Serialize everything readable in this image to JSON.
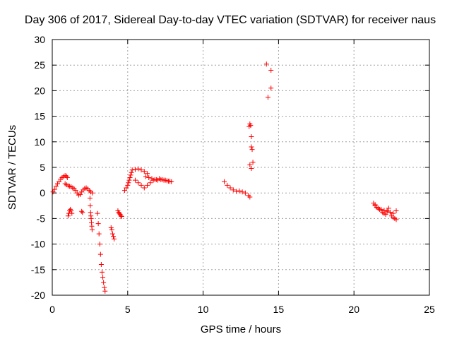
{
  "chart_data": {
    "type": "scatter",
    "title": "Day 306 of 2017, Sidereal Day-to-day VTEC variation (SDTVAR) for receiver naus",
    "xlabel": "GPS time / hours",
    "ylabel": "SDTVAR / TECUs",
    "xlim": [
      0,
      25
    ],
    "ylim": [
      -20,
      30
    ],
    "x_ticks": [
      0,
      5,
      10,
      15,
      20,
      25
    ],
    "y_ticks": [
      -20,
      -15,
      -10,
      -5,
      0,
      5,
      10,
      15,
      20,
      25,
      30
    ],
    "grid": true,
    "marker": "+",
    "color": "#ff0000",
    "series": [
      {
        "name": "SDTVAR",
        "x": [
          0.05,
          0.15,
          0.25,
          0.35,
          0.45,
          0.55,
          0.65,
          0.75,
          0.85,
          0.95,
          1.0,
          1.05,
          1.1,
          1.15,
          1.2,
          1.25,
          1.3,
          0.85,
          0.95,
          1.05,
          1.15,
          1.25,
          1.35,
          1.45,
          1.55,
          1.65,
          1.75,
          1.85,
          1.95,
          2.05,
          2.15,
          2.25,
          2.35,
          2.45,
          2.55,
          2.65,
          1.95,
          2.0,
          2.5,
          2.52,
          2.54,
          2.56,
          2.58,
          2.6,
          2.62,
          2.64,
          3.0,
          3.05,
          3.1,
          3.15,
          3.2,
          3.25,
          3.3,
          3.35,
          3.4,
          3.45,
          3.5,
          3.9,
          3.95,
          4.0,
          4.05,
          4.1,
          4.35,
          4.4,
          4.45,
          4.5,
          4.55,
          4.6,
          4.8,
          4.9,
          5.0,
          5.05,
          5.1,
          5.15,
          5.2,
          5.25,
          5.3,
          5.5,
          5.7,
          5.9,
          6.1,
          6.3,
          5.5,
          5.7,
          5.9,
          6.1,
          6.3,
          6.5,
          6.7,
          6.9,
          7.1,
          7.3,
          7.5,
          7.7,
          7.9,
          6.2,
          6.4,
          6.6,
          6.8,
          7.0,
          7.2,
          7.4,
          7.6,
          7.8,
          11.4,
          11.6,
          11.8,
          12.0,
          12.2,
          12.4,
          12.6,
          12.8,
          13.0,
          13.1,
          13.05,
          13.1,
          13.15,
          13.2,
          13.25,
          13.3,
          13.1,
          13.2,
          13.2,
          14.2,
          14.3,
          14.5,
          14.5,
          21.3,
          21.4,
          21.5,
          21.6,
          21.7,
          21.8,
          21.9,
          22.0,
          22.1,
          22.2,
          22.3,
          22.4,
          22.5,
          22.6,
          22.7,
          22.8,
          21.4,
          21.6,
          21.8,
          22.0,
          22.2,
          22.4,
          22.6,
          22.8
        ],
        "y": [
          0.2,
          0.7,
          1.3,
          1.8,
          2.2,
          2.7,
          3.0,
          3.2,
          3.4,
          3.3,
          3.0,
          -4.5,
          -4.0,
          -3.5,
          -3.2,
          -3.5,
          -4.0,
          1.8,
          1.6,
          1.4,
          1.3,
          1.2,
          1.0,
          0.8,
          0.5,
          0.0,
          -0.4,
          -0.3,
          0.2,
          0.6,
          0.9,
          1.0,
          0.8,
          0.5,
          0.2,
          0.0,
          -3.6,
          -3.8,
          -1.0,
          -2.5,
          -3.8,
          -4.5,
          -5.0,
          -5.8,
          -6.5,
          -7.2,
          -4.0,
          -6.0,
          -8.0,
          -10.0,
          -12.0,
          -14.0,
          -15.5,
          -16.5,
          -17.5,
          -18.5,
          -19.2,
          -6.8,
          -7.2,
          -8.0,
          -8.5,
          -9.0,
          -3.5,
          -3.8,
          -4.0,
          -4.2,
          -4.5,
          -4.6,
          0.5,
          1.0,
          1.5,
          2.0,
          2.5,
          3.0,
          3.5,
          4.0,
          4.5,
          4.6,
          4.7,
          4.5,
          4.2,
          3.8,
          2.5,
          2.0,
          1.5,
          1.0,
          1.5,
          2.0,
          2.5,
          2.6,
          2.8,
          2.6,
          2.5,
          2.3,
          2.2,
          3.2,
          3.0,
          2.8,
          2.6,
          2.5,
          2.6,
          2.5,
          2.4,
          2.3,
          2.2,
          1.5,
          1.0,
          0.6,
          0.3,
          0.4,
          0.2,
          0.0,
          -0.5,
          -0.8,
          13.0,
          13.5,
          13.2,
          9.0,
          8.5,
          6.0,
          5.5,
          4.8,
          11.0,
          25.2,
          18.7,
          24.0,
          20.5,
          -2.0,
          -2.3,
          -2.8,
          -3.0,
          -3.2,
          -3.5,
          -3.8,
          -4.0,
          -4.2,
          -3.5,
          -3.0,
          -3.8,
          -4.5,
          -4.8,
          -5.0,
          -5.2,
          -2.5,
          -3.0,
          -3.2,
          -3.4,
          -3.6,
          -3.8,
          -4.0,
          -3.5
        ]
      }
    ]
  }
}
